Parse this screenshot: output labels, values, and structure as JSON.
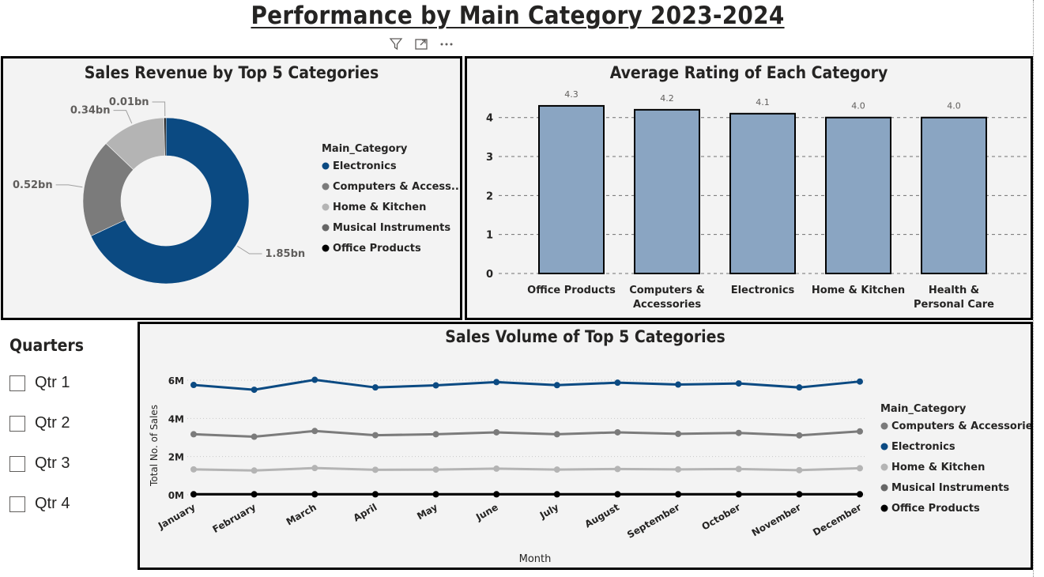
{
  "page": {
    "title": "Performance by Main Category 2023-2024"
  },
  "header_icons": [
    "filter-icon",
    "focus-mode-icon",
    "more-options-icon"
  ],
  "slicer": {
    "title": "Quarters",
    "items": [
      "Qtr 1",
      "Qtr 2",
      "Qtr 3",
      "Qtr 4"
    ]
  },
  "colors": {
    "Electronics": "#0b4a82",
    "Computers & Accessories": "#7b7b7b",
    "Home & Kitchen": "#b4b4b4",
    "Musical Instruments": "#666666",
    "Office Products": "#000000",
    "bar_fill": "#8aa5c2"
  },
  "chart_data": [
    {
      "type": "pie",
      "title": "Sales Revenue by Top 5 Categories",
      "legend_title": "Main_Category",
      "legend_position": "right",
      "legend": [
        "Electronics",
        "Computers & Access...",
        "Home & Kitchen",
        "Musical Instruments",
        "Office Products"
      ],
      "slices": [
        {
          "label": "Electronics",
          "value": 1.85,
          "display": "1.85bn"
        },
        {
          "label": "Computers & Accessories",
          "value": 0.52,
          "display": "0.52bn"
        },
        {
          "label": "Home & Kitchen",
          "value": 0.34,
          "display": "0.34bn"
        },
        {
          "label": "Musical Instruments",
          "value": 0.0,
          "display": ""
        },
        {
          "label": "Office Products",
          "value": 0.01,
          "display": "0.01bn"
        }
      ]
    },
    {
      "type": "bar",
      "title": "Average Rating of Each Category",
      "categories": [
        [
          "Office Products"
        ],
        [
          "Computers &",
          "Accessories"
        ],
        [
          "Electronics"
        ],
        [
          "Home & Kitchen"
        ],
        [
          "Health &",
          "Personal Care"
        ]
      ],
      "values": [
        4.3,
        4.2,
        4.1,
        4.0,
        4.0
      ],
      "value_labels": [
        "4.3",
        "4.2",
        "4.1",
        "4.0",
        "4.0"
      ],
      "ylim": [
        0,
        4.4
      ],
      "yticks": [
        0,
        1,
        2,
        3,
        4
      ],
      "grid": true
    },
    {
      "type": "line",
      "title": "Sales Volume of Top 5 Categories",
      "xlabel": "Month",
      "ylabel": "Total No. of Sales",
      "x": [
        "January",
        "February",
        "March",
        "April",
        "May",
        "June",
        "July",
        "August",
        "September",
        "October",
        "November",
        "December"
      ],
      "ylim": [
        0,
        6000000
      ],
      "yticks": [
        0,
        2000000,
        4000000,
        6000000
      ],
      "ytick_labels": [
        "0M",
        "2M",
        "4M",
        "6M"
      ],
      "legend_title": "Main_Category",
      "legend_position": "right",
      "series": [
        {
          "name": "Electronics",
          "values": [
            5750000,
            5500000,
            6020000,
            5620000,
            5730000,
            5900000,
            5740000,
            5870000,
            5770000,
            5830000,
            5620000,
            5930000
          ]
        },
        {
          "name": "Computers & Accessories",
          "values": [
            3170000,
            3040000,
            3340000,
            3120000,
            3170000,
            3270000,
            3170000,
            3270000,
            3190000,
            3240000,
            3110000,
            3320000
          ]
        },
        {
          "name": "Home & Kitchen",
          "values": [
            1330000,
            1270000,
            1400000,
            1310000,
            1320000,
            1370000,
            1320000,
            1350000,
            1330000,
            1350000,
            1290000,
            1390000
          ]
        },
        {
          "name": "Musical Instruments",
          "values": [
            20000,
            20000,
            20000,
            20000,
            20000,
            20000,
            20000,
            20000,
            20000,
            20000,
            20000,
            20000
          ]
        },
        {
          "name": "Office Products",
          "values": [
            30000,
            30000,
            30000,
            30000,
            30000,
            30000,
            30000,
            30000,
            30000,
            30000,
            30000,
            30000
          ]
        }
      ],
      "legend": [
        "Computers & Accessories",
        "Electronics",
        "Home & Kitchen",
        "Musical Instruments",
        "Office Products"
      ]
    }
  ]
}
